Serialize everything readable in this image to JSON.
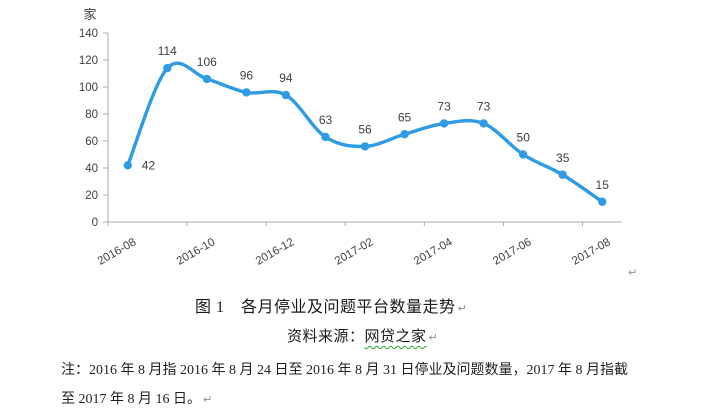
{
  "chart_data": {
    "type": "line",
    "smoothed": true,
    "title": "图 1　各月停业及问题平台数量走势",
    "unit_label": "家",
    "categories": [
      "2016-08",
      "2016-09",
      "2016-10",
      "2016-11",
      "2016-12",
      "2017-01",
      "2017-02",
      "2017-03",
      "2017-04",
      "2017-05",
      "2017-06",
      "2017-07",
      "2017-08"
    ],
    "values": [
      42,
      114,
      106,
      96,
      94,
      63,
      56,
      65,
      73,
      73,
      50,
      35,
      15
    ],
    "x_axis_tick_labels": [
      "2016-08",
      "2016-10",
      "2016-12",
      "2017-02",
      "2017-04",
      "2017-06",
      "2017-08"
    ],
    "y_ticks": [
      0,
      20,
      40,
      60,
      80,
      100,
      120,
      140
    ],
    "ylim": [
      0,
      140
    ],
    "grid": false,
    "legend": "none",
    "data_labels_shown": true,
    "line_color": "#2e9be2",
    "marker_color": "#2e9be2",
    "axis_color": "#acacac",
    "tick_label_color": "#404040",
    "data_label_color": "#3f3f3f"
  },
  "caption": {
    "figure_line": "图 1　各月停业及问题平台数量走势",
    "source_prefix": "资料来源：",
    "source_name": "网贷之家"
  },
  "note": {
    "text": "注：2016 年 8 月指 2016 年 8 月 24 日至 2016 年 8 月 31 日停业及问题数量，2017 年 8 月指截至 2017 年 8 月 16 日。"
  },
  "formatting": {
    "paragraph_mark": "↵"
  }
}
